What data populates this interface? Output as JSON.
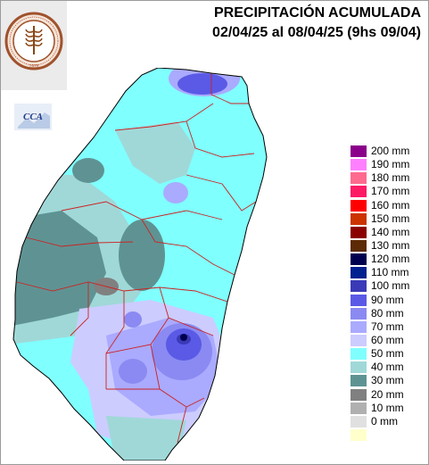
{
  "title": "PRECIPITACIÓN ACUMULADA",
  "subtitle": "02/04/25 al 08/04/25 (9hs 09/04)",
  "logo": {
    "name": "Bolsa de Cereales de Entre Ríos seal",
    "ring_text": "BOLSA DE CEREALES DE ENTRE RÍOS",
    "year": "1978"
  },
  "badge": {
    "text": "CCA"
  },
  "legend": [
    {
      "label": "200 mm",
      "color": "#8b008b"
    },
    {
      "label": "190 mm",
      "color": "#ff80ff"
    },
    {
      "label": "180 mm",
      "color": "#ff6a8f"
    },
    {
      "label": "170 mm",
      "color": "#ff1a66"
    },
    {
      "label": "160 mm",
      "color": "#ff0000"
    },
    {
      "label": "150 mm",
      "color": "#cc3300"
    },
    {
      "label": "140 mm",
      "color": "#8b0000"
    },
    {
      "label": "130 mm",
      "color": "#5c2a06"
    },
    {
      "label": "120 mm",
      "color": "#000050"
    },
    {
      "label": "110 mm",
      "color": "#00208f"
    },
    {
      "label": "100 mm",
      "color": "#3a3ab8"
    },
    {
      "label": "90 mm",
      "color": "#5a5ae6"
    },
    {
      "label": "80 mm",
      "color": "#8a8af2"
    },
    {
      "label": "70 mm",
      "color": "#aaaaff"
    },
    {
      "label": "60 mm",
      "color": "#ccccff"
    },
    {
      "label": "50 mm",
      "color": "#80ffff"
    },
    {
      "label": "40 mm",
      "color": "#a0d8d8"
    },
    {
      "label": "30 mm",
      "color": "#5f9393"
    },
    {
      "label": "20 mm",
      "color": "#808080"
    },
    {
      "label": "10 mm",
      "color": "#b0b0b0"
    },
    {
      "label": "0 mm",
      "color": "#e0e0e0"
    },
    {
      "label": "",
      "color": "#ffffcc"
    }
  ],
  "colors": {
    "province_fill": "#80ffff",
    "department_border": "#cc2222",
    "border_outline": "#000000"
  }
}
